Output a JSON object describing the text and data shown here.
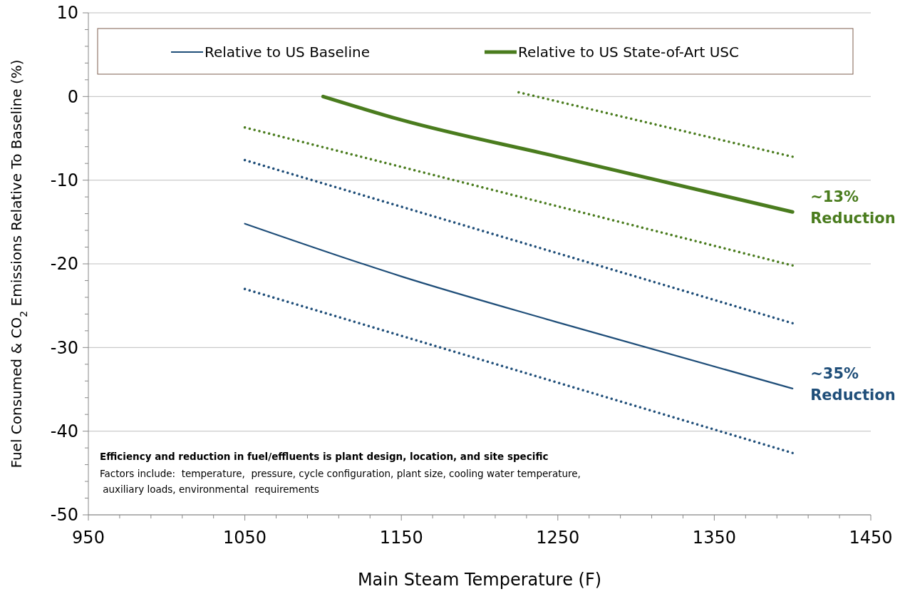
{
  "chart_data": {
    "type": "line",
    "xlabel": "Main Steam Temperature (F)",
    "ylabel": "Fuel Consumed & CO$_{2}$ Emissions Relative To Baseline (%)",
    "xlim": [
      950,
      1450
    ],
    "ylim": [
      -50,
      10
    ],
    "xticks": [
      950,
      {
        "value": 970,
        "label": null
      },
      {
        "value": 990,
        "label": null
      },
      {
        "value": 1010,
        "label": null
      },
      {
        "value": 1030,
        "label": null
      },
      1050,
      {
        "value": 1070,
        "label": null
      },
      {
        "value": 1090,
        "label": null
      },
      {
        "value": 1110,
        "label": null
      },
      {
        "value": 1130,
        "label": null
      },
      1150,
      {
        "value": 1170,
        "label": null
      },
      {
        "value": 1190,
        "label": null
      },
      {
        "value": 1210,
        "label": null
      },
      {
        "value": 1230,
        "label": null
      },
      1250,
      {
        "value": 1270,
        "label": null
      },
      {
        "value": 1290,
        "label": null
      },
      {
        "value": 1310,
        "label": null
      },
      {
        "value": 1330,
        "label": null
      },
      1350,
      {
        "value": 1370,
        "label": null
      },
      {
        "value": 1390,
        "label": null
      },
      {
        "value": 1410,
        "label": null
      },
      {
        "value": 1430,
        "label": null
      },
      1450
    ],
    "yticks": [
      -50,
      {
        "value": -48,
        "label": null
      },
      {
        "value": -46,
        "label": null
      },
      {
        "value": -44,
        "label": null
      },
      {
        "value": -42,
        "label": null
      },
      -40,
      {
        "value": -38,
        "label": null
      },
      {
        "value": -36,
        "label": null
      },
      {
        "value": -34,
        "label": null
      },
      {
        "value": -32,
        "label": null
      },
      -30,
      {
        "value": -28,
        "label": null
      },
      {
        "value": -26,
        "label": null
      },
      {
        "value": -24,
        "label": null
      },
      {
        "value": -22,
        "label": null
      },
      -20,
      {
        "value": -18,
        "label": null
      },
      {
        "value": -16,
        "label": null
      },
      {
        "value": -14,
        "label": null
      },
      {
        "value": -12,
        "label": null
      },
      -10,
      {
        "value": -8,
        "label": null
      },
      {
        "value": -6,
        "label": null
      },
      {
        "value": -4,
        "label": null
      },
      {
        "value": -2,
        "label": null
      },
      0,
      {
        "value": 2,
        "label": null
      },
      {
        "value": 4,
        "label": null
      },
      {
        "value": 6,
        "label": null
      },
      {
        "value": 8,
        "label": null
      },
      10
    ],
    "grid": "y",
    "legend": "top",
    "marker": "none",
    "series": [
      {
        "name": "Relative to US Baseline",
        "color": "#1f4e79",
        "x": [
          1050,
          1150,
          1250,
          1400
        ],
        "values": [
          -15.2,
          -21.5,
          -27.0,
          -34.9
        ],
        "line_style": "solid"
      },
      {
        "name": "Relative to US State-of-Art USC",
        "color": "#4a7c1e",
        "x": [
          1100,
          1150,
          1250,
          1400
        ],
        "values": [
          0,
          -2.8,
          -7.2,
          -13.8
        ],
        "line_style": "solid"
      },
      {
        "color": "#1f4e79",
        "x": [
          1050,
          1400
        ],
        "values": [
          -7.6,
          -27.1
        ],
        "line_style": "dotted"
      },
      {
        "color": "#1f4e79",
        "x": [
          1050,
          1400
        ],
        "values": [
          -23.0,
          -42.6
        ],
        "line_style": "dotted"
      },
      {
        "color": "#4a7c1e",
        "x": [
          1050,
          1400
        ],
        "values": [
          -3.7,
          -20.2
        ],
        "line_style": "dotted"
      },
      {
        "color": "#4a7c1e",
        "x": [
          1225,
          1400
        ],
        "values": [
          0.5,
          -7.2
        ],
        "line_style": "dotted"
      }
    ],
    "annotations": [
      {
        "text": "~13%\nReduction",
        "x": 1400,
        "y": -13.8
      },
      {
        "text": "~35%\nReduction",
        "x": 1400,
        "y": -34.9
      },
      "Efficiency and reduction in fuel/effluents is plant design, location, and site specific",
      "Factors include:  temperature,  pressure, cycle configuration, plant size, cooling water temperature,\n auxiliary loads, environmental  requirements"
    ]
  }
}
